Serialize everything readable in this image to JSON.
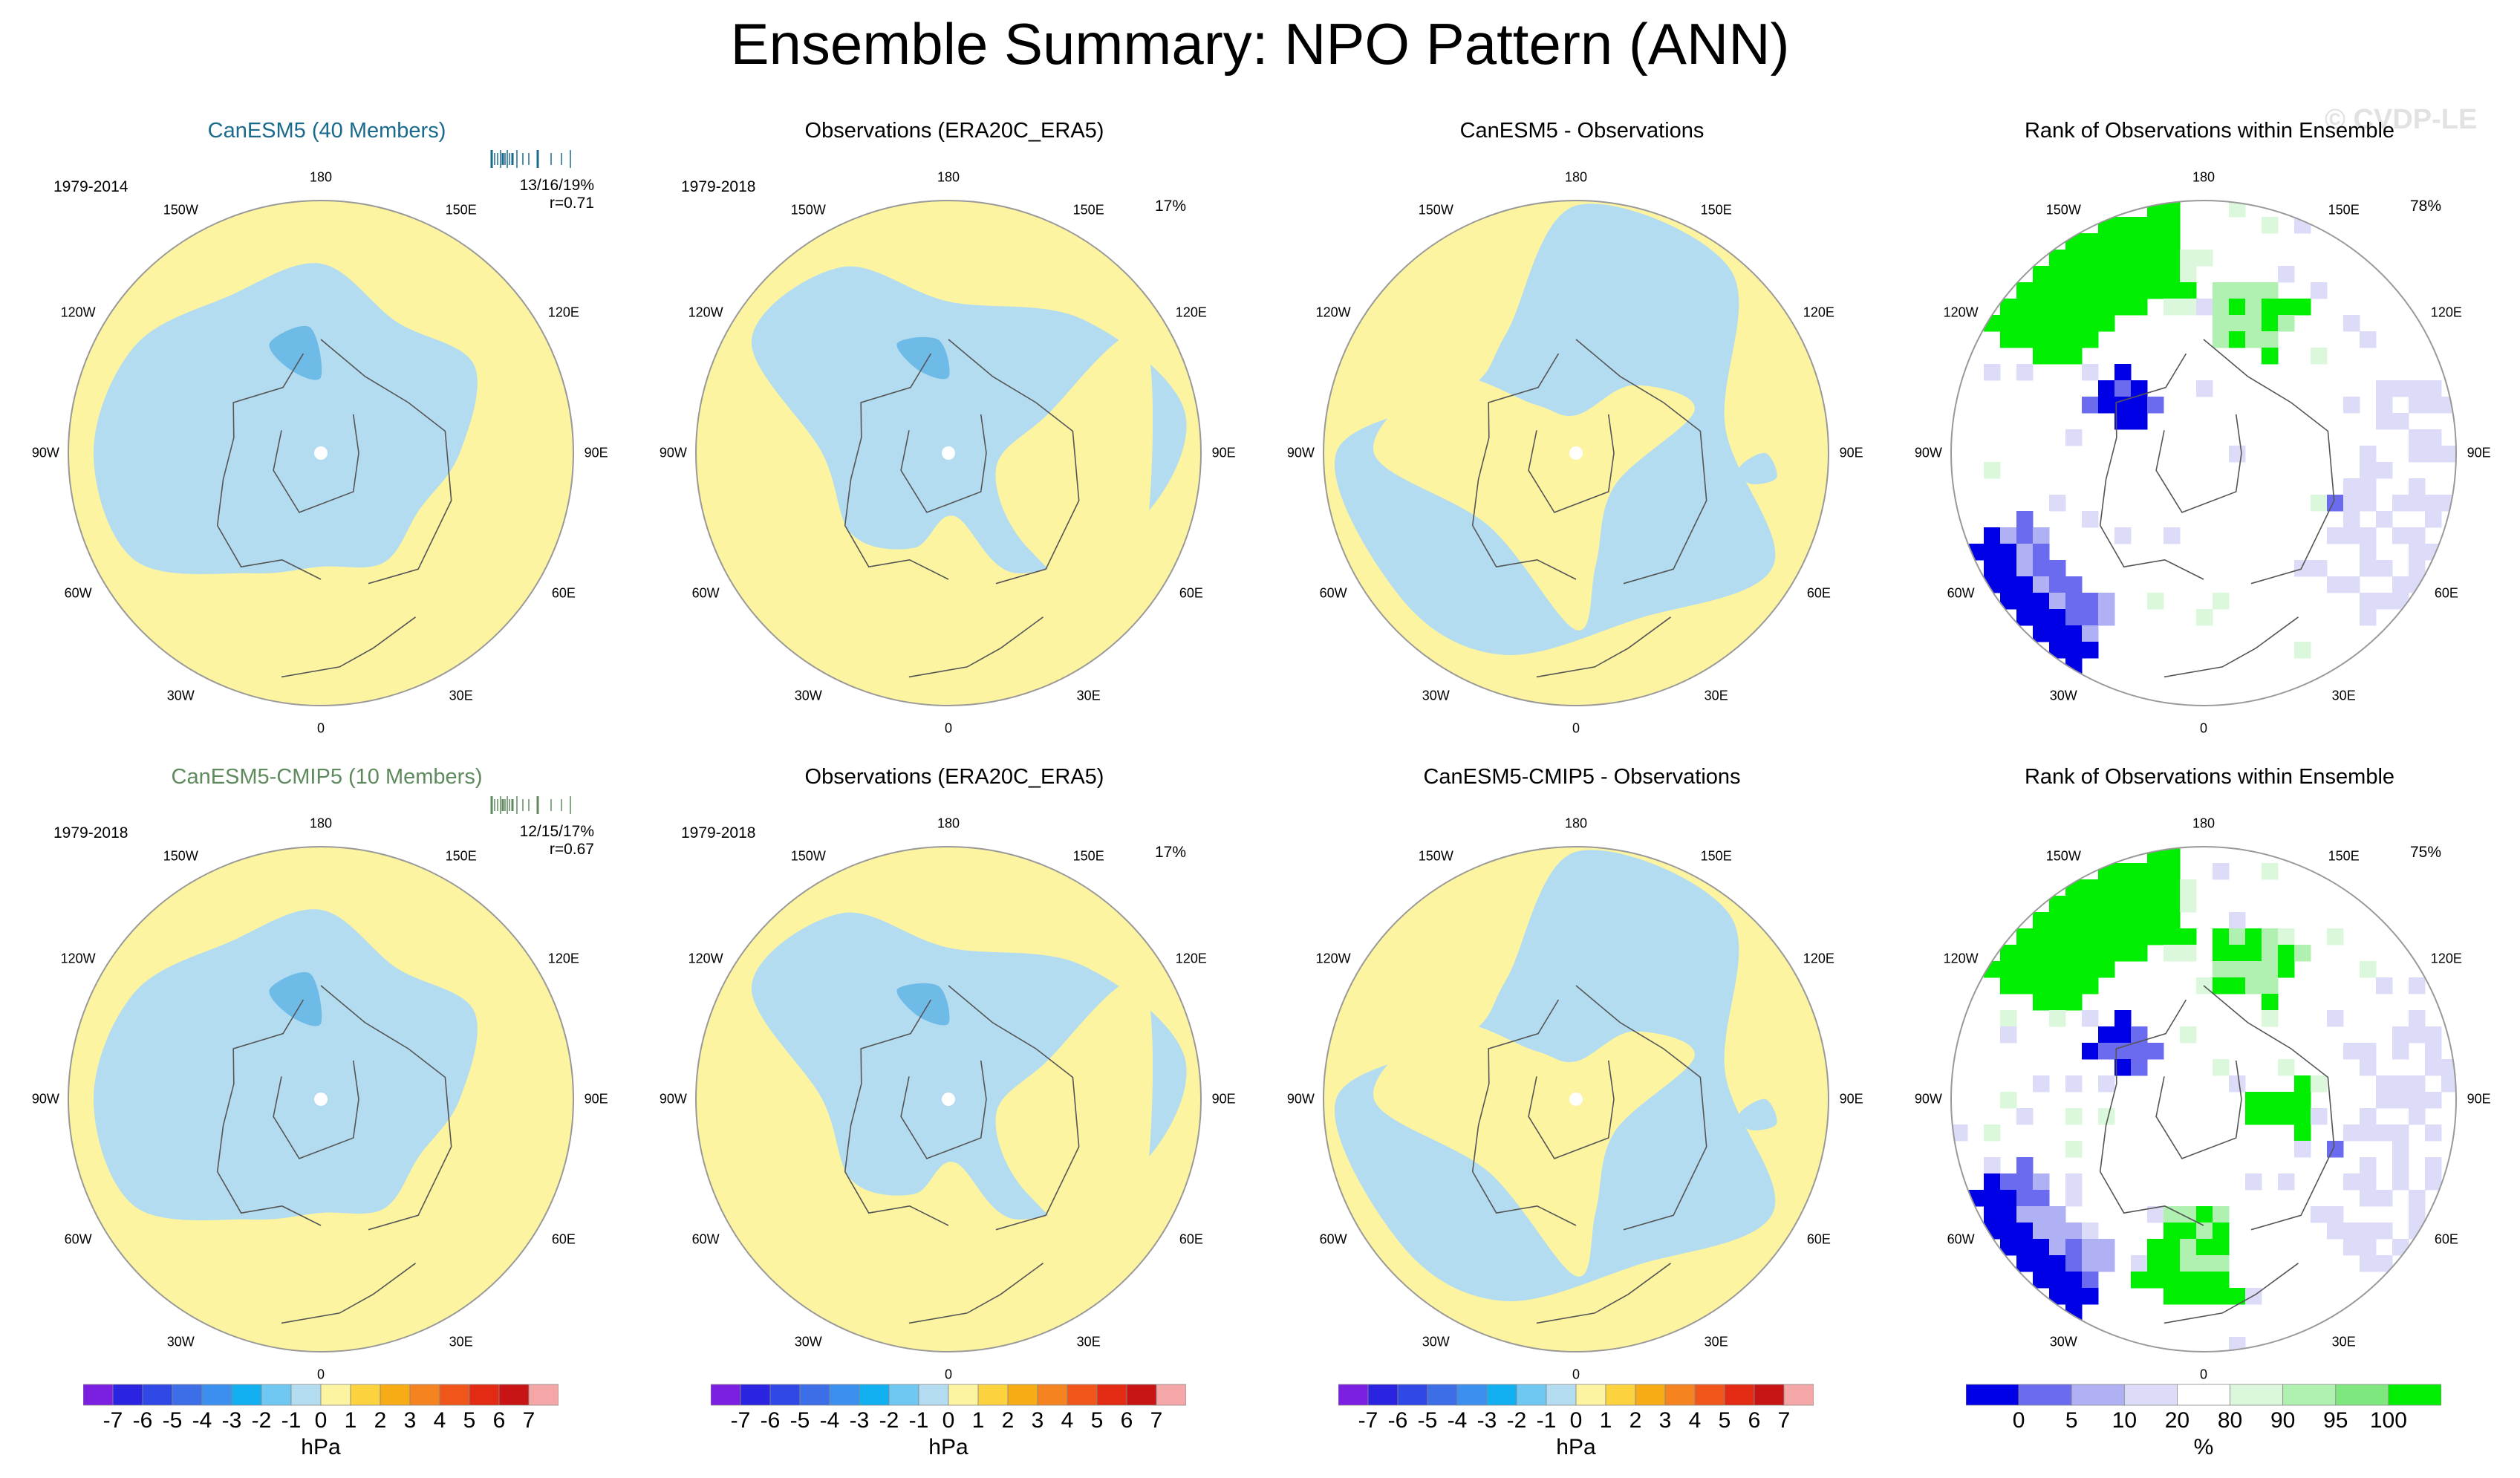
{
  "title": "Ensemble Summary: NPO Pattern (ANN)",
  "watermark": "© CVDP-LE",
  "colors": {
    "blue": "#b3dcf0",
    "yellow": "#fdf4a1",
    "darkblue": "#6fbbe8",
    "ocean_bg": "#ffffff",
    "rank_green": "#00ee00",
    "rank_blue": "#0000e6"
  },
  "rows": [
    {
      "panels": [
        {
          "title": "CanESM5 (40 Members)",
          "title_color": "#1a6a8d",
          "period": "1979-2014",
          "pct": "",
          "stats_top": "13/16/19%",
          "stats_bottom": "r=0.71",
          "kind": "model"
        },
        {
          "title": "Observations (ERA20C_ERA5)",
          "title_color": "#000000",
          "period": "1979-2018",
          "pct": "17%",
          "kind": "obs"
        },
        {
          "title": "CanESM5 - Observations",
          "title_color": "#000000",
          "period": "",
          "pct": "",
          "kind": "diff"
        },
        {
          "title": "Rank of Observations within Ensemble",
          "title_color": "#000000",
          "period": "",
          "pct": "78%",
          "kind": "rank"
        }
      ]
    },
    {
      "panels": [
        {
          "title": "CanESM5-CMIP5 (10 Members)",
          "title_color": "#5e8a5e",
          "period": "1979-2018",
          "pct": "",
          "stats_top": "12/15/17%",
          "stats_bottom": "r=0.67",
          "kind": "model"
        },
        {
          "title": "Observations (ERA20C_ERA5)",
          "title_color": "#000000",
          "period": "1979-2018",
          "pct": "17%",
          "kind": "obs"
        },
        {
          "title": "CanESM5-CMIP5 - Observations",
          "title_color": "#000000",
          "period": "",
          "pct": "",
          "kind": "diff"
        },
        {
          "title": "Rank of Observations within Ensemble",
          "title_color": "#000000",
          "period": "",
          "pct": "75%",
          "kind": "rank"
        }
      ]
    }
  ],
  "lon_labels": [
    "180",
    "150E",
    "120E",
    "90E",
    "60E",
    "30E",
    "0",
    "30W",
    "60W",
    "90W",
    "120W",
    "150W"
  ],
  "chart_data": {
    "type": "heatmap",
    "projection": "north polar stereographic",
    "contour_colorbar": {
      "labels": [
        "-7",
        "-6",
        "-5",
        "-4",
        "-3",
        "-2",
        "-1",
        "0",
        "1",
        "2",
        "3",
        "4",
        "5",
        "6",
        "7"
      ],
      "colors": [
        "#7b1fe0",
        "#2a23e0",
        "#3048e6",
        "#3c6ee8",
        "#3b8fee",
        "#12b0f0",
        "#6ec8f2",
        "#b3dcf0",
        "#fdf4a1",
        "#fcd33e",
        "#f7ab14",
        "#f58320",
        "#f0561a",
        "#e32a12",
        "#c81414",
        "#f5a6a6"
      ],
      "unit": "hPa"
    },
    "rank_colorbar": {
      "labels": [
        "0",
        "5",
        "10",
        "20",
        "80",
        "90",
        "95",
        "100"
      ],
      "colors": [
        "#0000e6",
        "#6b6bf0",
        "#b0b0f5",
        "#dcdcf8",
        "#ffffff",
        "#dcf8dc",
        "#b0f0b0",
        "#7ee87e",
        "#00ee00"
      ],
      "unit": "%"
    }
  }
}
